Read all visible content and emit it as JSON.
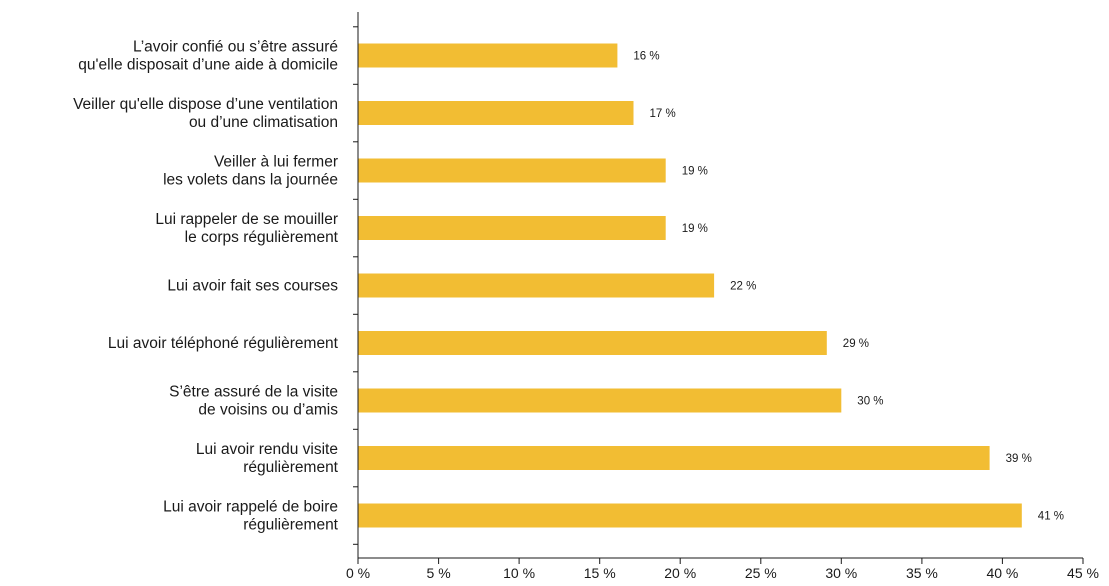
{
  "chart_data": {
    "type": "bar",
    "orientation": "horizontal",
    "categories": [
      [
        "L’avoir confié ou s’être assuré",
        "qu'elle disposait d’une aide à domicile"
      ],
      [
        "Veiller qu'elle dispose d’une ventilation",
        "ou d’une climatisation"
      ],
      [
        "Veiller à lui fermer",
        "les volets dans la journée"
      ],
      [
        "Lui rappeler de se mouiller",
        "le corps régulièrement"
      ],
      [
        "Lui avoir fait ses courses"
      ],
      [
        "Lui avoir téléphoné régulièrement"
      ],
      [
        "S’être assuré de la visite",
        "de voisins ou d’amis"
      ],
      [
        "Lui avoir rendu visite",
        "régulièrement"
      ],
      [
        "Lui avoir rappelé de boire",
        "régulièrement"
      ]
    ],
    "values": [
      16.1,
      17.1,
      19.1,
      19.1,
      22.1,
      29.1,
      30.0,
      39.2,
      41.2
    ],
    "value_labels": [
      "16 %",
      "17 %",
      "19 %",
      "19 %",
      "22 %",
      "29 %",
      "30 %",
      "39 %",
      "41 %"
    ],
    "x_ticks": [
      0,
      5,
      10,
      15,
      20,
      25,
      30,
      35,
      40,
      45
    ],
    "x_tick_labels": [
      "0 %",
      "5 %",
      "10 %",
      "15 %",
      "20 %",
      "25 %",
      "30 %",
      "35 %",
      "40 %",
      "45 %"
    ],
    "xlim": [
      0,
      45
    ],
    "title": "",
    "xlabel": "",
    "ylabel": "",
    "grid": false,
    "legend": "none",
    "colors": {
      "bar": "#f2bd33",
      "axis": "#1a1a1a",
      "text": "#1a1a1a"
    }
  }
}
